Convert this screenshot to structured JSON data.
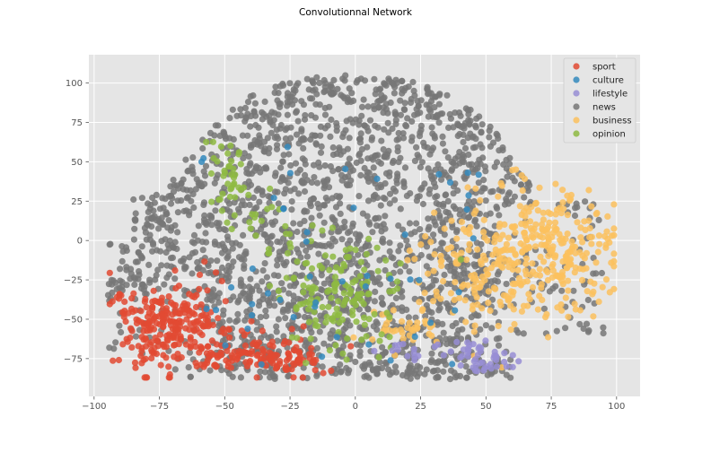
{
  "chart_data": {
    "type": "scatter",
    "title": "Convolutionnal Network",
    "xlabel": "",
    "ylabel": "",
    "xlim": [
      -102,
      109
    ],
    "ylim": [
      -99,
      118
    ],
    "xticks": [
      -100,
      -75,
      -50,
      -25,
      0,
      25,
      50,
      75,
      100
    ],
    "yticks": [
      -75,
      -50,
      -25,
      0,
      25,
      50,
      75,
      100
    ],
    "xtick_labels": [
      "−100",
      "−75",
      "−50",
      "−25",
      "0",
      "25",
      "50",
      "75",
      "100"
    ],
    "ytick_labels": [
      "−75",
      "−50",
      "−25",
      "0",
      "25",
      "50",
      "75",
      "100"
    ],
    "grid": true,
    "legend_position": "top-right",
    "series": [
      {
        "name": "sport",
        "color": "#E24A33"
      },
      {
        "name": "culture",
        "color": "#348ABD"
      },
      {
        "name": "lifestyle",
        "color": "#988ED5"
      },
      {
        "name": "news",
        "color": "#777777"
      },
      {
        "name": "business",
        "color": "#FBC15E"
      },
      {
        "name": "opinion",
        "color": "#8EBA42"
      }
    ]
  }
}
